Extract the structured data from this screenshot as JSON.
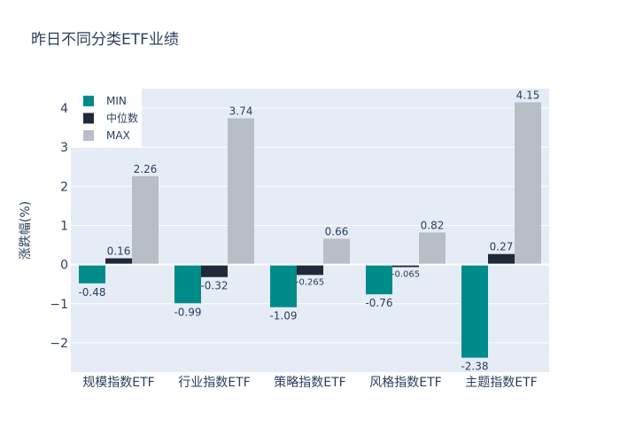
{
  "chart_data": {
    "type": "bar",
    "title": "昨日不同分类ETF业绩",
    "xlabel": "",
    "ylabel": "涨跌幅(%)",
    "ylim": [
      -2.75,
      4.5
    ],
    "yticks": [
      -2,
      -1,
      0,
      1,
      2,
      3,
      4
    ],
    "ytick_labels": [
      "−2",
      "−1",
      "0",
      "1",
      "2",
      "3",
      "4"
    ],
    "categories": [
      "规模指数ETF",
      "行业指数ETF",
      "策略指数ETF",
      "风格指数ETF",
      "主题指数ETF"
    ],
    "legend_position": "top-left",
    "series": [
      {
        "name": "MIN",
        "color": "#008b8b",
        "values": [
          -0.48,
          -0.99,
          -1.09,
          -0.76,
          -2.38
        ],
        "labels": [
          "-0.48",
          "-0.99",
          "-1.09",
          "-0.76",
          "-2.38"
        ]
      },
      {
        "name": "中位数",
        "color": "#1f2937",
        "values": [
          0.16,
          -0.32,
          -0.265,
          -0.065,
          0.27
        ],
        "labels": [
          "0.16",
          "-0.32",
          "-0.265",
          "-0.065",
          "0.27"
        ]
      },
      {
        "name": "MAX",
        "color": "#b8bec6",
        "values": [
          2.26,
          3.74,
          0.66,
          0.82,
          4.15
        ],
        "labels": [
          "2.26",
          "3.74",
          "0.66",
          "0.82",
          "4.15"
        ]
      }
    ]
  }
}
